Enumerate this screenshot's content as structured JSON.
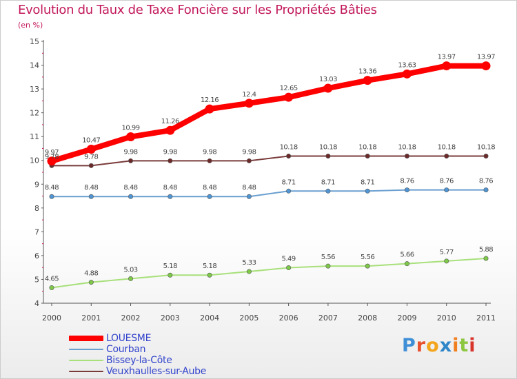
{
  "header": {
    "title": "Evolution du Taux de Taxe Foncière sur les Propriétés Bâties",
    "unit": "(en %)"
  },
  "logo": {
    "text": "Proxiti"
  },
  "chart_data": {
    "type": "line",
    "title": "Evolution du Taux de Taxe Foncière sur les Propriétés Bâties",
    "ylabel": "(en %)",
    "xlabel": "",
    "ylim": [
      4,
      15
    ],
    "yticks": [
      "4",
      "5",
      "6",
      "7",
      "8",
      "9",
      "10",
      "11",
      "12",
      "13",
      "14",
      "15"
    ],
    "categories": [
      "2000",
      "2001",
      "2002",
      "2003",
      "2004",
      "2005",
      "2006",
      "2007",
      "2008",
      "2009",
      "2010",
      "2011"
    ],
    "grid": false,
    "legend_position": "bottom-left",
    "series": [
      {
        "name": "LOUESME",
        "color": "#ff0000",
        "emphasis": "thick",
        "values": [
          9.97,
          10.47,
          10.99,
          11.26,
          12.16,
          12.4,
          12.65,
          13.03,
          13.36,
          13.63,
          13.97,
          13.97
        ],
        "labels": [
          "9.97",
          "10.47",
          "10.99",
          "11.26",
          "12.16",
          "12.4",
          "12.65",
          "13.03",
          "13.36",
          "13.63",
          "13.97",
          "13.97"
        ]
      },
      {
        "name": "Courban",
        "color": "#6a9fd0",
        "marker_color": "#4f95d3",
        "values": [
          8.48,
          8.48,
          8.48,
          8.48,
          8.48,
          8.48,
          8.71,
          8.71,
          8.71,
          8.76,
          8.76,
          8.76
        ],
        "labels": [
          "8.48",
          "8.48",
          "8.48",
          "8.48",
          "8.48",
          "8.48",
          "8.71",
          "8.71",
          "8.71",
          "8.76",
          "8.76",
          "8.76"
        ]
      },
      {
        "name": "Bissey-la-Côte",
        "color": "#a8e07a",
        "marker_color": "#7ec84a",
        "values": [
          4.65,
          4.88,
          5.03,
          5.18,
          5.18,
          5.33,
          5.49,
          5.56,
          5.56,
          5.66,
          5.77,
          5.88
        ],
        "labels": [
          "4.65",
          "4.88",
          "5.03",
          "5.18",
          "5.18",
          "5.33",
          "5.49",
          "5.56",
          "5.56",
          "5.66",
          "5.77",
          "5.88"
        ]
      },
      {
        "name": "Veuxhaulles-sur-Aube",
        "color": "#7a3b3b",
        "marker_color": "#6b2a2a",
        "values": [
          9.78,
          9.78,
          9.98,
          9.98,
          9.98,
          9.98,
          10.18,
          10.18,
          10.18,
          10.18,
          10.18,
          10.18
        ],
        "labels": [
          "9.78",
          "9.78",
          "9.98",
          "9.98",
          "9.98",
          "9.98",
          "10.18",
          "10.18",
          "10.18",
          "10.18",
          "10.18",
          "10.18"
        ]
      }
    ]
  },
  "colors": {
    "title": "#c2185b",
    "axis": "#555555",
    "minor_ticks": "#d4145a",
    "legend_text": "#3344cc"
  }
}
